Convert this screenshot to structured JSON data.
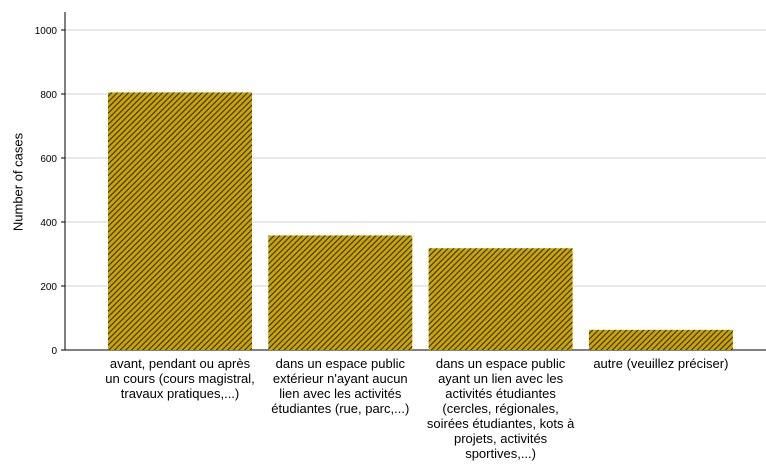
{
  "chart_data": {
    "type": "bar",
    "categories": [
      "avant, pendant ou après un cours (cours magistral, travaux pratiques,...)",
      "dans un espace public extérieur n'ayant aucun lien avec les activités étudiantes (rue, parc,...)",
      "dans un espace public ayant un lien avec les activités étudiantes (cercles, régionales, soirées étudiantes, kots à projets, activités sportives,...)",
      "autre (veuillez préciser)"
    ],
    "values": [
      805,
      358,
      318,
      63
    ],
    "title": "",
    "xlabel": "",
    "ylabel": "Number of cases",
    "ylim": [
      0,
      1050
    ],
    "yticks": [
      0,
      200,
      400,
      600,
      800,
      1000
    ],
    "grid": true,
    "bar_color": "#c8a400",
    "hatch_color": "#2b2410"
  }
}
